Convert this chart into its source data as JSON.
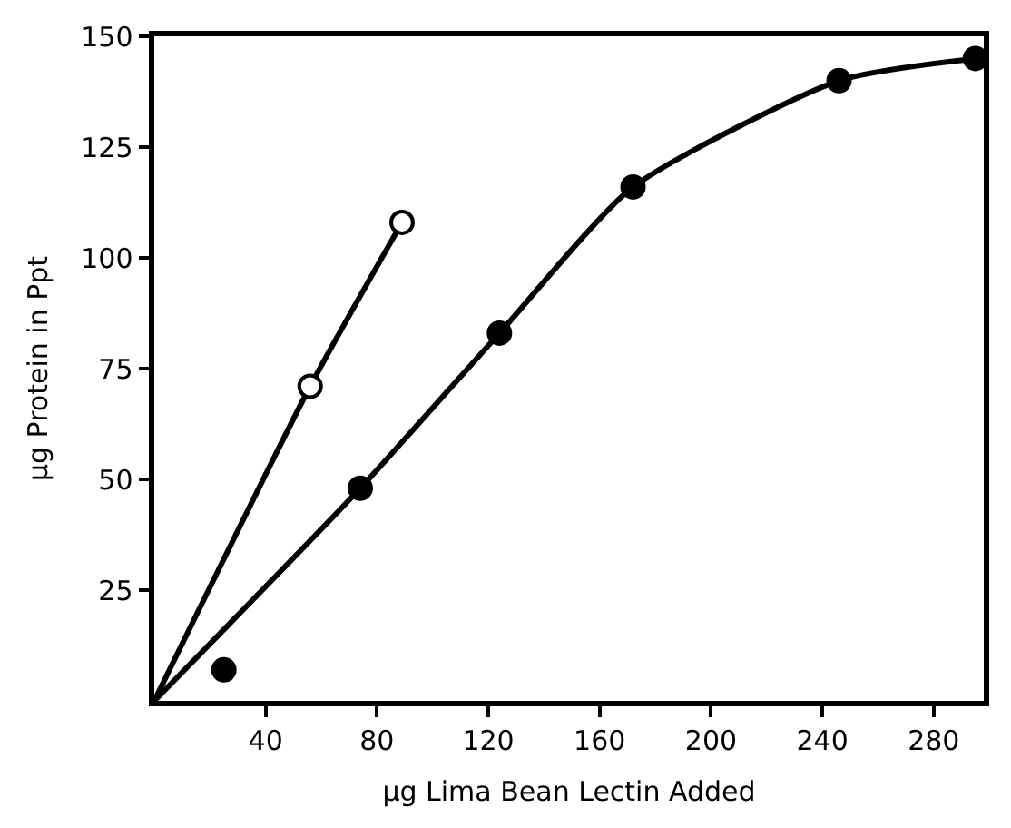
{
  "chart_data": {
    "type": "scatter",
    "xlabel": "µg Lima Bean Lectin Added",
    "ylabel": "µg Protein in Ppt",
    "xlim": [
      0,
      298
    ],
    "ylim": [
      0,
      150
    ],
    "xticks": [
      40,
      80,
      120,
      160,
      200,
      240,
      280
    ],
    "yticks": [
      25,
      50,
      75,
      100,
      125,
      150
    ],
    "series": [
      {
        "type": "line",
        "color": "#000000",
        "x": [
          0,
          74,
          124,
          172,
          246,
          295
        ],
        "values": [
          0,
          48,
          83,
          116,
          140,
          145
        ],
        "marker": "none",
        "line_style": "solid"
      },
      {
        "type": "line",
        "color": "#000000",
        "x": [
          0,
          56,
          89
        ],
        "values": [
          0,
          71,
          108
        ],
        "marker": "none",
        "line_style": "solid"
      },
      {
        "color": "#000000",
        "x": [
          25,
          74,
          124,
          172,
          246,
          295
        ],
        "values": [
          7,
          48,
          83,
          116,
          140,
          145
        ],
        "marker": "circle"
      },
      {
        "color": "#ffffff",
        "x": [
          56,
          89
        ],
        "values": [
          71,
          108
        ],
        "marker": "circle"
      }
    ]
  }
}
